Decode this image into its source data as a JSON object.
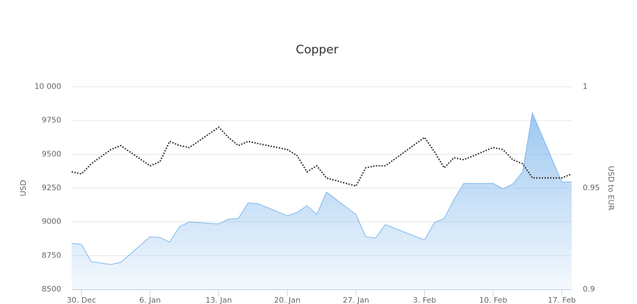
{
  "chart_data": {
    "type": "area-line",
    "title": "Copper",
    "y_label": "USD",
    "y2_label": "USD to EUR",
    "x": [
      "29. Dec",
      "30. Dec",
      "31. Dec",
      "2. Jan",
      "3. Jan",
      "6. Jan",
      "7. Jan",
      "8. Jan",
      "9. Jan",
      "10. Jan",
      "13. Jan",
      "14. Jan",
      "15. Jan",
      "16. Jan",
      "17. Jan",
      "20. Jan",
      "21. Jan",
      "22. Jan",
      "23. Jan",
      "24. Jan",
      "27. Jan",
      "28. Jan",
      "29. Jan",
      "30. Jan",
      "3. Feb",
      "4. Feb",
      "5. Feb",
      "6. Feb",
      "7. Feb",
      "10. Feb",
      "11. Feb",
      "12. Feb",
      "13. Feb",
      "14. Feb",
      "17. Feb",
      "18. Feb"
    ],
    "xlim": [
      "29. Dec",
      "18. Feb"
    ],
    "xticks": [
      "30. Dec",
      "6. Jan",
      "13. Jan",
      "20. Jan",
      "27. Jan",
      "3. Feb",
      "10. Feb",
      "17. Feb"
    ],
    "series": [
      {
        "name": "Copper",
        "color": "#7cb5ec",
        "axis": "y",
        "values": [
          8840,
          8835,
          8705,
          8685,
          8700,
          8890,
          8885,
          8850,
          8965,
          9000,
          8985,
          9020,
          9025,
          9140,
          9135,
          9045,
          9070,
          9120,
          9055,
          9220,
          9055,
          8890,
          8880,
          8980,
          8865,
          8995,
          9025,
          9165,
          9285,
          9285,
          9245,
          9280,
          9370,
          9805,
          9295,
          9295
        ]
      },
      {
        "name": "USD to EUR",
        "color": "#333333",
        "axis": "y2",
        "values": [
          0.958,
          0.957,
          0.962,
          0.969,
          0.971,
          0.961,
          0.963,
          0.973,
          0.971,
          0.97,
          0.98,
          0.975,
          0.971,
          0.973,
          0.972,
          0.969,
          0.966,
          0.958,
          0.961,
          0.955,
          0.951,
          0.96,
          0.961,
          0.961,
          0.975,
          0.968,
          0.96,
          0.965,
          0.964,
          0.97,
          0.969,
          0.964,
          0.962,
          0.955,
          0.955,
          0.957
        ]
      }
    ],
    "ylim": [
      8500,
      10000
    ],
    "yticks": [
      8500,
      8750,
      9000,
      9250,
      9500,
      9750,
      {
        "value": 10000,
        "label": "10 000"
      }
    ],
    "y2lim": [
      0.9,
      1
    ],
    "y2ticks": [
      0.9,
      0.95,
      1
    ],
    "grid": true
  }
}
